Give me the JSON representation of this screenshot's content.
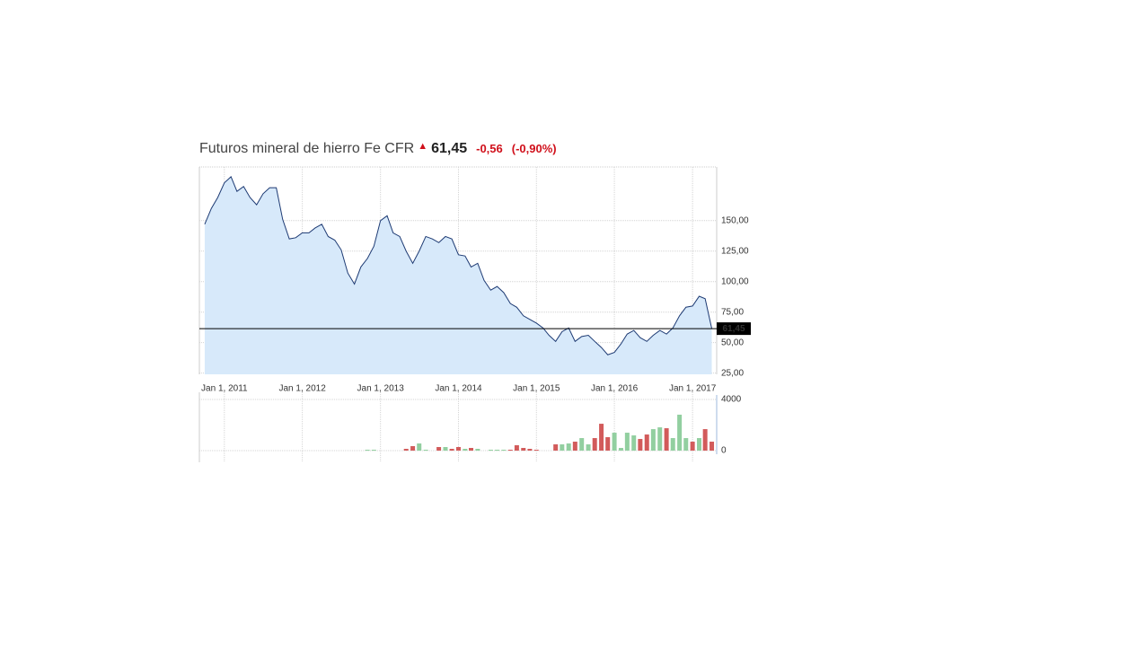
{
  "header": {
    "title": "Futuros mineral de hierro Fe CFR",
    "price": "61,45",
    "change": "-0,56",
    "change_percent": "(-0,90%)"
  },
  "chart_data": [
    {
      "type": "area",
      "color": "#1d3a73",
      "fill": "#d7e9fa",
      "grid": true,
      "x": [
        "2010-10-01",
        "2010-11-01",
        "2010-12-01",
        "2011-01-01",
        "2011-02-01",
        "2011-03-01",
        "2011-04-01",
        "2011-05-01",
        "2011-06-01",
        "2011-07-01",
        "2011-08-01",
        "2011-09-01",
        "2011-10-01",
        "2011-11-01",
        "2011-12-01",
        "2012-01-01",
        "2012-02-01",
        "2012-03-01",
        "2012-04-01",
        "2012-05-01",
        "2012-06-01",
        "2012-07-01",
        "2012-08-01",
        "2012-09-01",
        "2012-10-01",
        "2012-11-01",
        "2012-12-01",
        "2013-01-01",
        "2013-02-01",
        "2013-03-01",
        "2013-04-01",
        "2013-05-01",
        "2013-06-01",
        "2013-07-01",
        "2013-08-01",
        "2013-09-01",
        "2013-10-01",
        "2013-11-01",
        "2013-12-01",
        "2014-01-01",
        "2014-02-01",
        "2014-03-01",
        "2014-04-01",
        "2014-05-01",
        "2014-06-01",
        "2014-07-01",
        "2014-08-01",
        "2014-09-01",
        "2014-10-01",
        "2014-11-01",
        "2014-12-01",
        "2015-01-01",
        "2015-02-01",
        "2015-03-01",
        "2015-04-01",
        "2015-05-01",
        "2015-06-01",
        "2015-07-01",
        "2015-08-01",
        "2015-09-01",
        "2015-10-01",
        "2015-11-01",
        "2015-12-01",
        "2016-01-01",
        "2016-02-01",
        "2016-03-01",
        "2016-04-01",
        "2016-05-01",
        "2016-06-01",
        "2016-07-01",
        "2016-08-01",
        "2016-09-01",
        "2016-10-01",
        "2016-11-01",
        "2016-12-01",
        "2017-01-01",
        "2017-02-01",
        "2017-03-01",
        "2017-04-01"
      ],
      "values": [
        147,
        160,
        169,
        181,
        186,
        174,
        178,
        169,
        163,
        172,
        177,
        177,
        151,
        135,
        136,
        140,
        140,
        144,
        147,
        137,
        134,
        126,
        107,
        98,
        112,
        119,
        129,
        150,
        154,
        140,
        137,
        125,
        115,
        125,
        137,
        135,
        132,
        137,
        135,
        122,
        121,
        112,
        115,
        101,
        93,
        96,
        91,
        82,
        79,
        72,
        69,
        66,
        62,
        56,
        51,
        59,
        62,
        51,
        55,
        56,
        51,
        46,
        40,
        42,
        49,
        57,
        60,
        54,
        51,
        56,
        60,
        57,
        62,
        72,
        79,
        80,
        88,
        86,
        61.45
      ],
      "xlim": [
        "2010-09-06",
        "2017-04-24"
      ],
      "xticks": [
        {
          "value": "2011-01-01",
          "label": "Jan 1, 2011"
        },
        {
          "value": "2012-01-01",
          "label": "Jan 1, 2012"
        },
        {
          "value": "2013-01-01",
          "label": "Jan 1, 2013"
        },
        {
          "value": "2014-01-01",
          "label": "Jan 1, 2014"
        },
        {
          "value": "2015-01-01",
          "label": "Jan 1, 2015"
        },
        {
          "value": "2016-01-01",
          "label": "Jan 1, 2016"
        },
        {
          "value": "2017-01-01",
          "label": "Jan 1, 2017"
        }
      ],
      "ylim": [
        24,
        194
      ],
      "yticks": [
        {
          "value": 25,
          "label": "25,00"
        },
        {
          "value": 50,
          "label": "50,00"
        },
        {
          "value": 75,
          "label": "75,00"
        },
        {
          "value": 100,
          "label": "100,00"
        },
        {
          "value": 125,
          "label": "125,00"
        },
        {
          "value": 150,
          "label": "150,00"
        }
      ],
      "last_price": {
        "value": 61.45,
        "label": "61,45"
      }
    },
    {
      "type": "bar",
      "grid": true,
      "x": [
        "2012-11-01",
        "2012-12-01",
        "2013-05-01",
        "2013-06-01",
        "2013-07-01",
        "2013-08-01",
        "2013-10-01",
        "2013-11-01",
        "2013-12-01",
        "2014-01-01",
        "2014-02-01",
        "2014-03-01",
        "2014-04-01",
        "2014-06-01",
        "2014-07-01",
        "2014-08-01",
        "2014-09-01",
        "2014-10-01",
        "2014-11-01",
        "2014-12-01",
        "2015-01-01",
        "2015-04-01",
        "2015-05-01",
        "2015-06-01",
        "2015-07-01",
        "2015-08-01",
        "2015-09-01",
        "2015-10-01",
        "2015-11-01",
        "2015-12-01",
        "2016-01-01",
        "2016-02-01",
        "2016-03-01",
        "2016-04-01",
        "2016-05-01",
        "2016-06-01",
        "2016-07-01",
        "2016-08-01",
        "2016-09-01",
        "2016-10-01",
        "2016-11-01",
        "2016-12-01",
        "2017-01-01",
        "2017-02-01",
        "2017-03-01",
        "2017-04-01"
      ],
      "values": [
        70,
        70,
        140,
        350,
        560,
        70,
        280,
        280,
        140,
        280,
        140,
        210,
        140,
        70,
        70,
        70,
        70,
        420,
        210,
        140,
        70,
        490,
        490,
        560,
        700,
        980,
        490,
        980,
        2100,
        1050,
        1400,
        210,
        1400,
        1190,
        910,
        1260,
        1680,
        1820,
        1750,
        980,
        2810,
        980,
        700,
        980,
        1680,
        700
      ],
      "colors": [
        "#92cfa0",
        "#92cfa0",
        "#d25b5b",
        "#d25b5b",
        "#92cfa0",
        "#92cfa0",
        "#d25b5b",
        "#92cfa0",
        "#d25b5b",
        "#d25b5b",
        "#92cfa0",
        "#d25b5b",
        "#92cfa0",
        "#92cfa0",
        "#92cfa0",
        "#92cfa0",
        "#d25b5b",
        "#d25b5b",
        "#d25b5b",
        "#d25b5b",
        "#d25b5b",
        "#d25b5b",
        "#92cfa0",
        "#92cfa0",
        "#d25b5b",
        "#92cfa0",
        "#92cfa0",
        "#d25b5b",
        "#d25b5b",
        "#d25b5b",
        "#92cfa0",
        "#92cfa0",
        "#92cfa0",
        "#92cfa0",
        "#d25b5b",
        "#d25b5b",
        "#92cfa0",
        "#92cfa0",
        "#d25b5b",
        "#92cfa0",
        "#92cfa0",
        "#92cfa0",
        "#d25b5b",
        "#92cfa0",
        "#d25b5b",
        "#d25b5b"
      ],
      "xlim": [
        "2010-09-06",
        "2017-04-24"
      ],
      "ylim": [
        0,
        4000
      ],
      "yticks": [
        0,
        4000
      ]
    }
  ]
}
